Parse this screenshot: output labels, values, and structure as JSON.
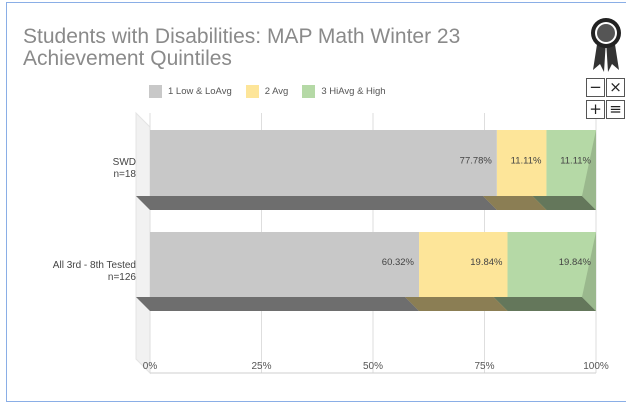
{
  "title_lines": [
    "Students with Disabilities: MAP Math Winter 23",
    "Achievement Quintiles"
  ],
  "controls": {
    "zoom_out": "−",
    "close": "×",
    "zoom_in": "+",
    "menu": "≡"
  },
  "colors": {
    "frame": "#8aaee6",
    "low": "#c8c8c8",
    "avg": "#fde599",
    "high": "#b5d9a6"
  },
  "chart_data": {
    "type": "bar",
    "orientation": "horizontal",
    "stacked": true,
    "style": "3d",
    "title": "Students with Disabilities: MAP Math Winter 23 Achievement Quintiles",
    "legend_position": "top",
    "categories": [
      {
        "label": "SWD",
        "n": "n=18"
      },
      {
        "label": "All 3rd - 8th Tested",
        "n": "n=126"
      }
    ],
    "series": [
      {
        "name": "1 Low & LoAvg",
        "color": "#c8c8c8",
        "values": [
          77.78,
          60.32
        ],
        "labels": [
          "77.78%",
          "60.32%"
        ]
      },
      {
        "name": "2 Avg",
        "color": "#fde599",
        "values": [
          11.11,
          19.84
        ],
        "labels": [
          "11.11%",
          "19.84%"
        ]
      },
      {
        "name": "3 HiAvg & High",
        "color": "#b5d9a6",
        "values": [
          11.11,
          19.84
        ],
        "labels": [
          "11.11%",
          "19.84%"
        ]
      }
    ],
    "x_ticks": [
      0,
      25,
      50,
      75,
      100
    ],
    "x_tick_labels": [
      "0%",
      "25%",
      "50%",
      "75%",
      "100%"
    ],
    "xlim": [
      0,
      100
    ]
  }
}
